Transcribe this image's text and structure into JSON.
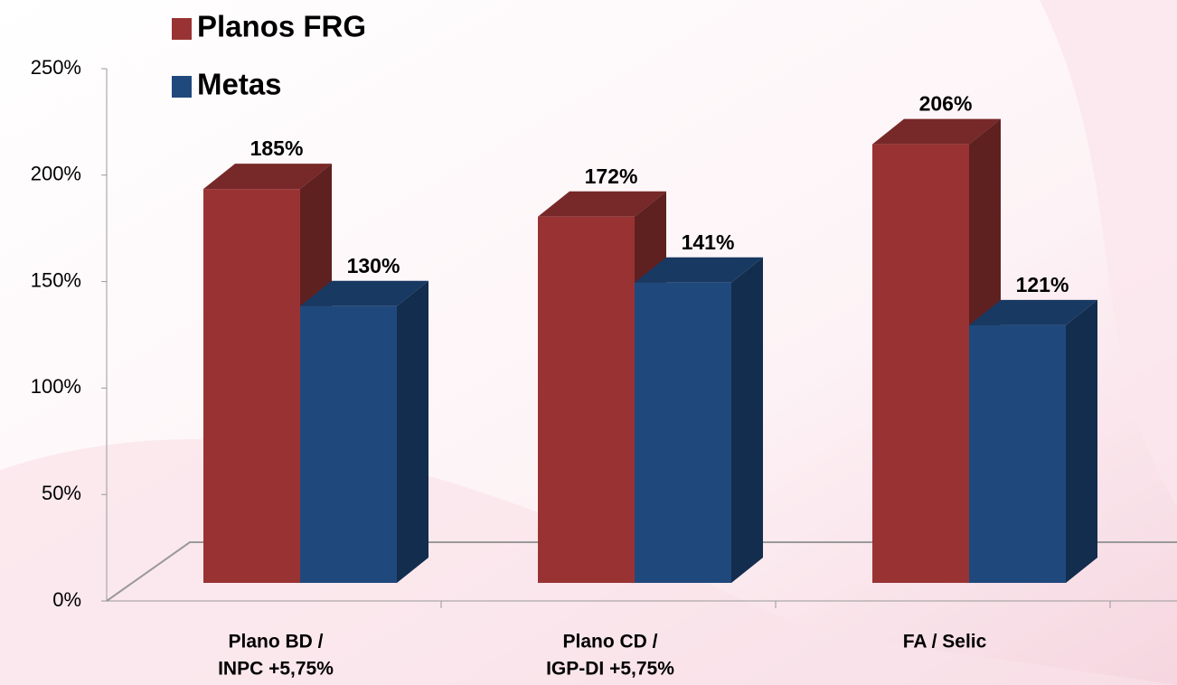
{
  "chart_data": {
    "type": "bar3d",
    "categories": [
      [
        "Plano BD /",
        "INPC +5,75%"
      ],
      [
        "Plano CD /",
        "IGP-DI +5,75%"
      ],
      [
        "FA / Selic"
      ]
    ],
    "series": [
      {
        "name": "Planos FRG",
        "color": "#993333",
        "values": [
          185,
          172,
          206
        ],
        "value_labels": [
          "185%",
          "172%",
          "206%"
        ]
      },
      {
        "name": "Metas",
        "color": "#1f497d",
        "values": [
          130,
          141,
          121
        ],
        "value_labels": [
          "130%",
          "141%",
          "121%"
        ]
      }
    ],
    "ylim": [
      0,
      250
    ],
    "yticks": [
      {
        "value": 0,
        "label": "0%"
      },
      {
        "value": 50,
        "label": "50%"
      },
      {
        "value": 100,
        "label": "100%"
      },
      {
        "value": 150,
        "label": "150%"
      },
      {
        "value": 200,
        "label": "200%"
      },
      {
        "value": 250,
        "label": "250%"
      }
    ]
  }
}
